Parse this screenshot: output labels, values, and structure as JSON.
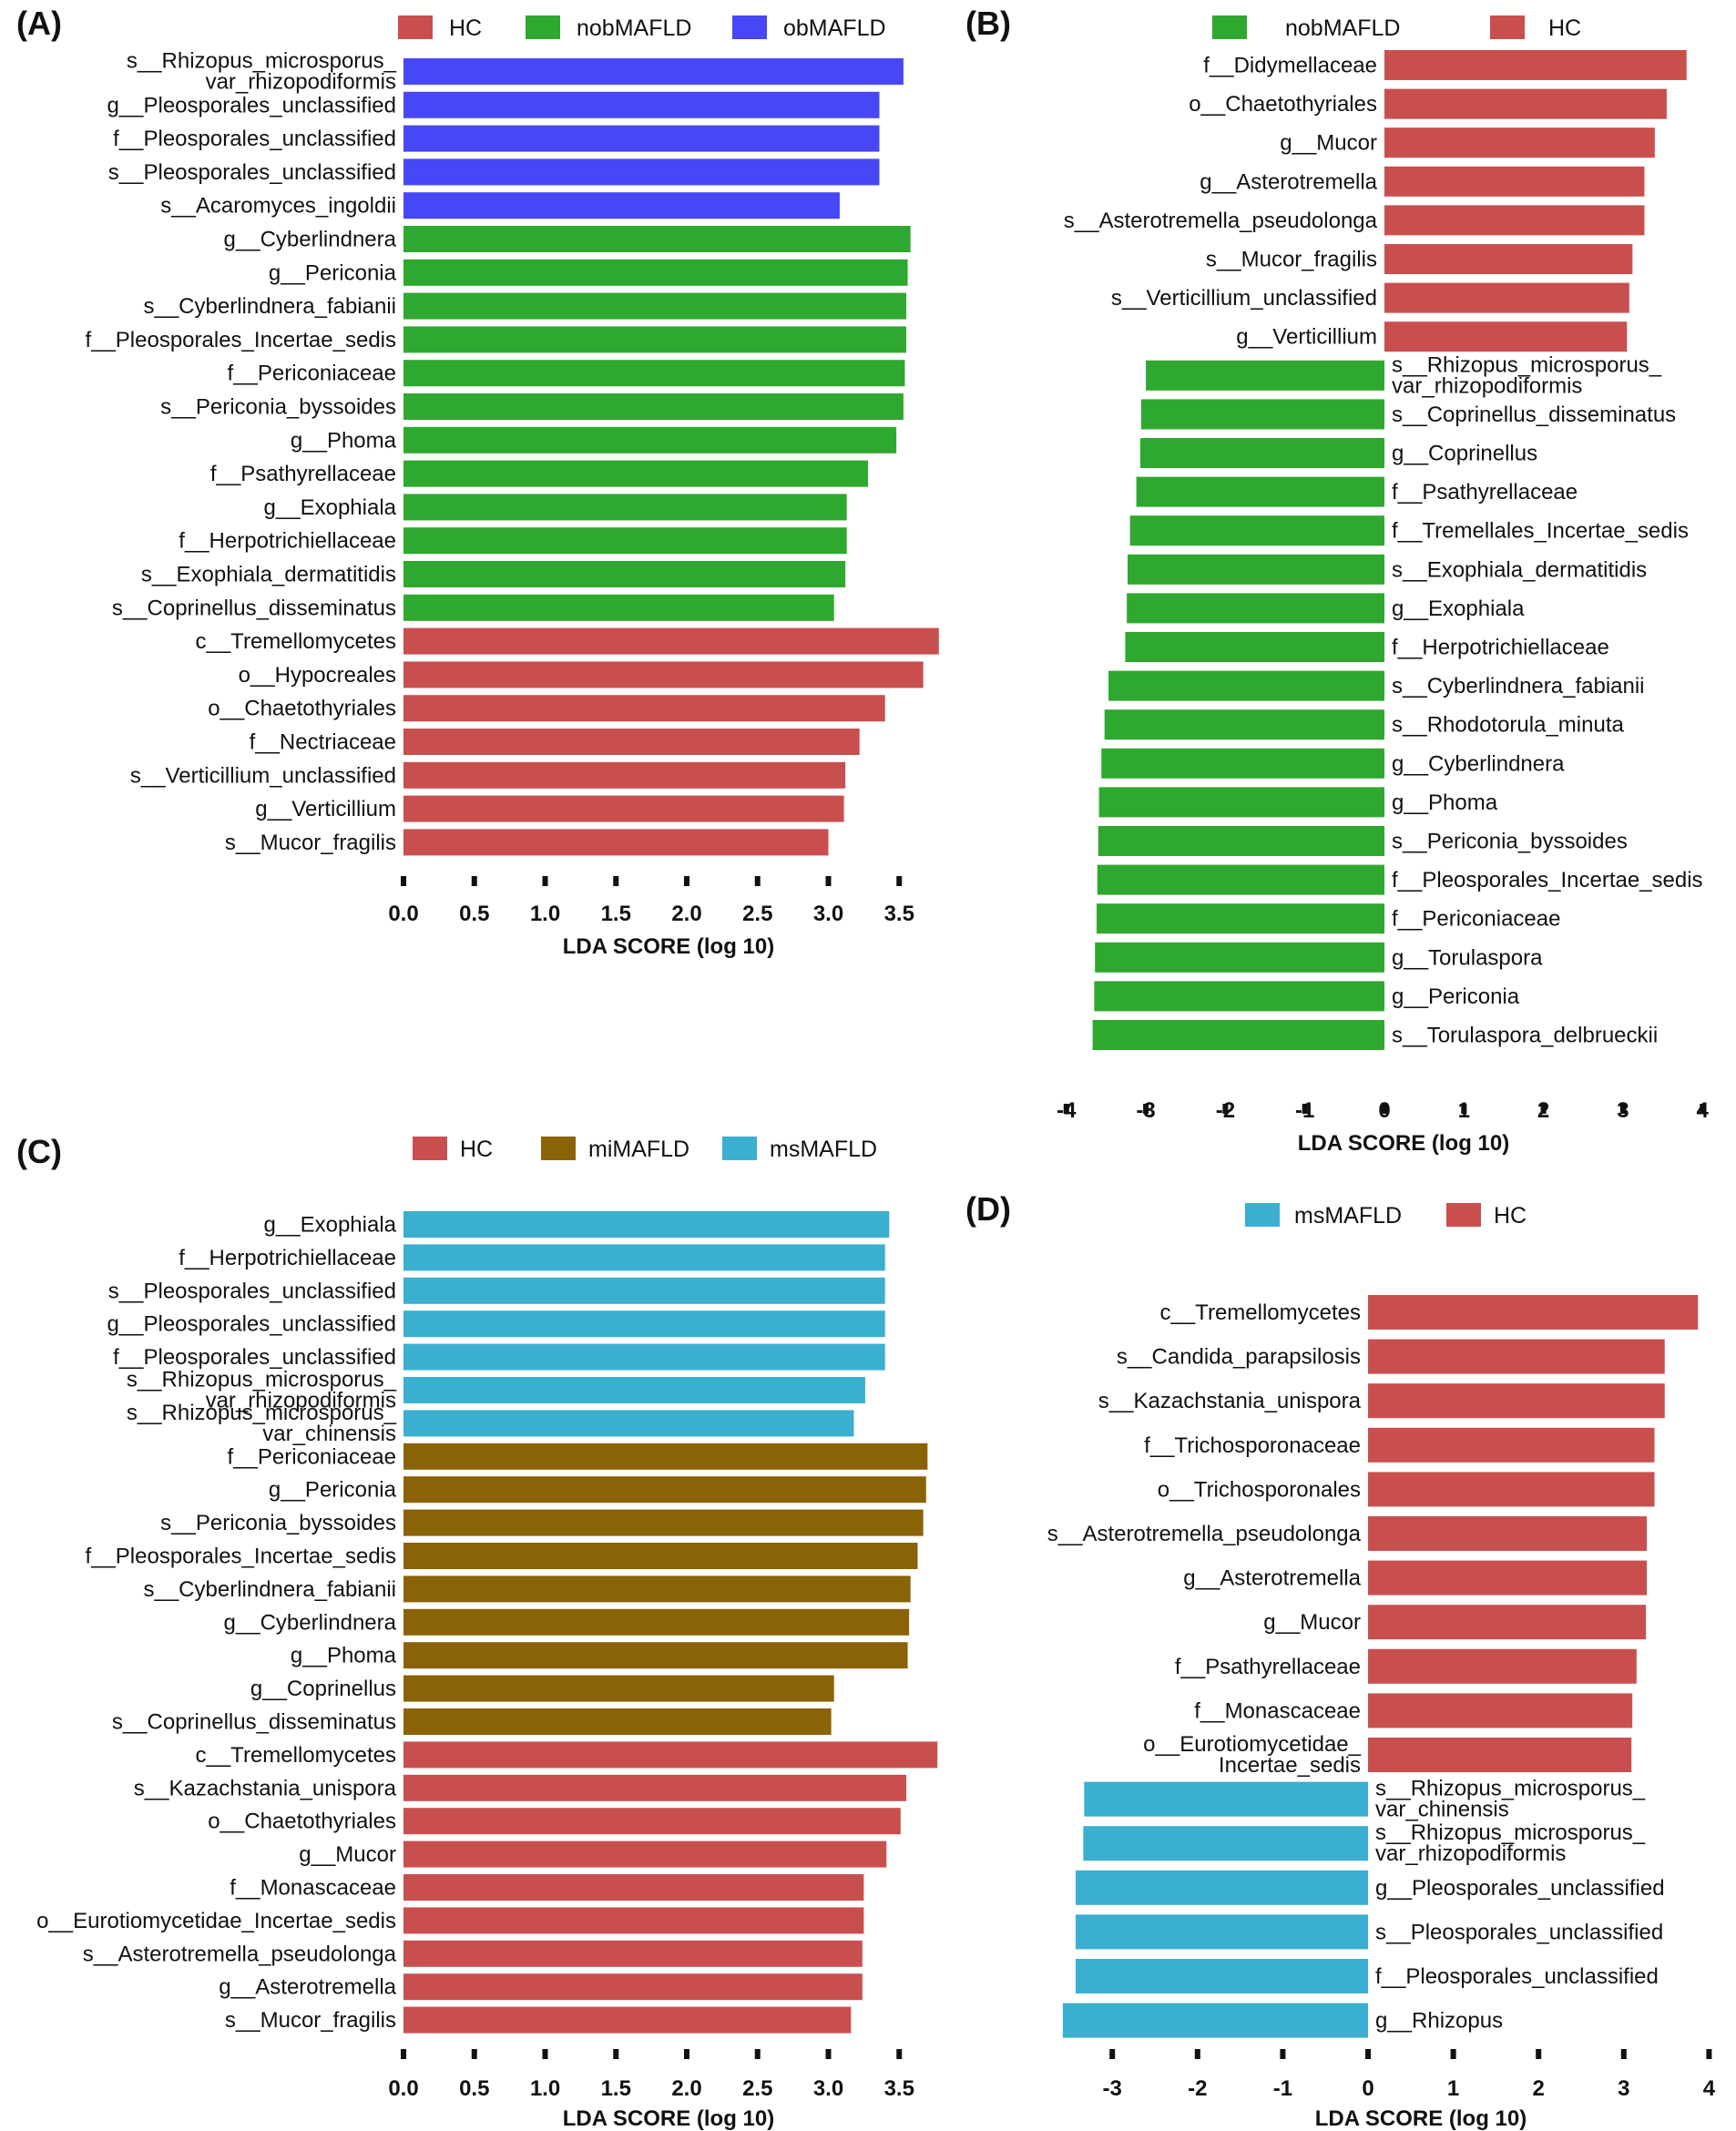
{
  "colors": {
    "HC": "#C94F4F",
    "nobMAFLD": "#2FA82F",
    "obMAFLD": "#4747F5",
    "miMAFLD": "#8A6306",
    "msMAFLD": "#3BAFCF"
  },
  "chart_data": [
    {
      "panel": "(A)",
      "type": "bar",
      "orientation": "horizontal",
      "xlabel": "LDA SCORE (log 10)",
      "xticks": [
        "0.0",
        "0.5",
        "1.0",
        "1.5",
        "2.0",
        "2.5",
        "3.0",
        "3.5"
      ],
      "xlim": [
        0,
        3.8
      ],
      "legend": [
        {
          "name": "HC",
          "color": "#C94F4F"
        },
        {
          "name": "nobMAFLD",
          "color": "#2FA82F"
        },
        {
          "name": "obMAFLD",
          "color": "#4747F5"
        }
      ],
      "bars": [
        {
          "label": [
            "s__Rhizopus_microsporus_",
            "var_rhizopodiformis"
          ],
          "value": 3.53,
          "group": "obMAFLD"
        },
        {
          "label": [
            "g__Pleosporales_unclassified"
          ],
          "value": 3.36,
          "group": "obMAFLD"
        },
        {
          "label": [
            "f__Pleosporales_unclassified"
          ],
          "value": 3.36,
          "group": "obMAFLD"
        },
        {
          "label": [
            "s__Pleosporales_unclassified"
          ],
          "value": 3.36,
          "group": "obMAFLD"
        },
        {
          "label": [
            "s__Acaromyces_ingoldii"
          ],
          "value": 3.08,
          "group": "obMAFLD"
        },
        {
          "label": [
            "g__Cyberlindnera"
          ],
          "value": 3.58,
          "group": "nobMAFLD"
        },
        {
          "label": [
            "g__Periconia"
          ],
          "value": 3.56,
          "group": "nobMAFLD"
        },
        {
          "label": [
            "s__Cyberlindnera_fabianii"
          ],
          "value": 3.55,
          "group": "nobMAFLD"
        },
        {
          "label": [
            "f__Pleosporales_Incertae_sedis"
          ],
          "value": 3.55,
          "group": "nobMAFLD"
        },
        {
          "label": [
            "f__Periconiaceae"
          ],
          "value": 3.54,
          "group": "nobMAFLD"
        },
        {
          "label": [
            "s__Periconia_byssoides"
          ],
          "value": 3.53,
          "group": "nobMAFLD"
        },
        {
          "label": [
            "g__Phoma"
          ],
          "value": 3.48,
          "group": "nobMAFLD"
        },
        {
          "label": [
            "f__Psathyrellaceae"
          ],
          "value": 3.28,
          "group": "nobMAFLD"
        },
        {
          "label": [
            "g__Exophiala"
          ],
          "value": 3.13,
          "group": "nobMAFLD"
        },
        {
          "label": [
            "f__Herpotrichiellaceae"
          ],
          "value": 3.13,
          "group": "nobMAFLD"
        },
        {
          "label": [
            "s__Exophiala_dermatitidis"
          ],
          "value": 3.12,
          "group": "nobMAFLD"
        },
        {
          "label": [
            "s__Coprinellus_disseminatus"
          ],
          "value": 3.04,
          "group": "nobMAFLD"
        },
        {
          "label": [
            "c__Tremellomycetes"
          ],
          "value": 3.78,
          "group": "HC"
        },
        {
          "label": [
            "o__Hypocreales"
          ],
          "value": 3.67,
          "group": "HC"
        },
        {
          "label": [
            "o__Chaetothyriales"
          ],
          "value": 3.4,
          "group": "HC"
        },
        {
          "label": [
            "f__Nectriaceae"
          ],
          "value": 3.22,
          "group": "HC"
        },
        {
          "label": [
            "s__Verticillium_unclassified"
          ],
          "value": 3.12,
          "group": "HC"
        },
        {
          "label": [
            "g__Verticillium"
          ],
          "value": 3.11,
          "group": "HC"
        },
        {
          "label": [
            "s__Mucor_fragilis"
          ],
          "value": 3.0,
          "group": "HC"
        }
      ]
    },
    {
      "panel": "(B)",
      "type": "bar",
      "orientation": "horizontal",
      "xlabel": "LDA SCORE (log 10)",
      "xticks": [
        "-4",
        "-3",
        "-2",
        "-1",
        "0",
        "1",
        "2",
        "3",
        "4"
      ],
      "xlim": [
        -4,
        4
      ],
      "legend": [
        {
          "name": "nobMAFLD",
          "color": "#2FA82F"
        },
        {
          "name": "HC",
          "color": "#C94F4F"
        }
      ],
      "bars": [
        {
          "label": [
            "f__Didymellaceae"
          ],
          "value": 3.8,
          "group": "HC"
        },
        {
          "label": [
            "o__Chaetothyriales"
          ],
          "value": 3.55,
          "group": "HC"
        },
        {
          "label": [
            "g__Mucor"
          ],
          "value": 3.4,
          "group": "HC"
        },
        {
          "label": [
            "g__Asterotremella"
          ],
          "value": 3.27,
          "group": "HC"
        },
        {
          "label": [
            "s__Asterotremella_pseudolonga"
          ],
          "value": 3.27,
          "group": "HC"
        },
        {
          "label": [
            "s__Mucor_fragilis"
          ],
          "value": 3.12,
          "group": "HC"
        },
        {
          "label": [
            "s__Verticillium_unclassified"
          ],
          "value": 3.08,
          "group": "HC"
        },
        {
          "label": [
            "g__Verticillium"
          ],
          "value": 3.05,
          "group": "HC"
        },
        {
          "label": [
            "s__Rhizopus_microsporus_",
            "var_rhizopodiformis"
          ],
          "value": -3.0,
          "group": "nobMAFLD"
        },
        {
          "label": [
            "s__Coprinellus_disseminatus"
          ],
          "value": -3.06,
          "group": "nobMAFLD"
        },
        {
          "label": [
            "g__Coprinellus"
          ],
          "value": -3.07,
          "group": "nobMAFLD"
        },
        {
          "label": [
            "f__Psathyrellaceae"
          ],
          "value": -3.12,
          "group": "nobMAFLD"
        },
        {
          "label": [
            "f__Tremellales_Incertae_sedis"
          ],
          "value": -3.2,
          "group": "nobMAFLD"
        },
        {
          "label": [
            "s__Exophiala_dermatitidis"
          ],
          "value": -3.23,
          "group": "nobMAFLD"
        },
        {
          "label": [
            "g__Exophiala"
          ],
          "value": -3.24,
          "group": "nobMAFLD"
        },
        {
          "label": [
            "f__Herpotrichiellaceae"
          ],
          "value": -3.26,
          "group": "nobMAFLD"
        },
        {
          "label": [
            "s__Cyberlindnera_fabianii"
          ],
          "value": -3.47,
          "group": "nobMAFLD"
        },
        {
          "label": [
            "s__Rhodotorula_minuta"
          ],
          "value": -3.52,
          "group": "nobMAFLD"
        },
        {
          "label": [
            "g__Cyberlindnera"
          ],
          "value": -3.56,
          "group": "nobMAFLD"
        },
        {
          "label": [
            "g__Phoma"
          ],
          "value": -3.59,
          "group": "nobMAFLD"
        },
        {
          "label": [
            "s__Periconia_byssoides"
          ],
          "value": -3.6,
          "group": "nobMAFLD"
        },
        {
          "label": [
            "f__Pleosporales_Incertae_sedis"
          ],
          "value": -3.61,
          "group": "nobMAFLD"
        },
        {
          "label": [
            "f__Periconiaceae"
          ],
          "value": -3.62,
          "group": "nobMAFLD"
        },
        {
          "label": [
            "g__Torulaspora"
          ],
          "value": -3.64,
          "group": "nobMAFLD"
        },
        {
          "label": [
            "g__Periconia"
          ],
          "value": -3.65,
          "group": "nobMAFLD"
        },
        {
          "label": [
            "s__Torulaspora_delbrueckii"
          ],
          "value": -3.67,
          "group": "nobMAFLD"
        }
      ]
    },
    {
      "panel": "(C)",
      "type": "bar",
      "orientation": "horizontal",
      "xlabel": "LDA SCORE (log 10)",
      "xticks": [
        "0.0",
        "0.5",
        "1.0",
        "1.5",
        "2.0",
        "2.5",
        "3.0",
        "3.5"
      ],
      "xlim": [
        0,
        3.8
      ],
      "legend": [
        {
          "name": "HC",
          "color": "#C94F4F"
        },
        {
          "name": "miMAFLD",
          "color": "#8A6306"
        },
        {
          "name": "msMAFLD",
          "color": "#3BAFCF"
        }
      ],
      "bars": [
        {
          "label": [
            "g__Exophiala"
          ],
          "value": 3.43,
          "group": "msMAFLD"
        },
        {
          "label": [
            "f__Herpotrichiellaceae"
          ],
          "value": 3.4,
          "group": "msMAFLD"
        },
        {
          "label": [
            "s__Pleosporales_unclassified"
          ],
          "value": 3.4,
          "group": "msMAFLD"
        },
        {
          "label": [
            "g__Pleosporales_unclassified"
          ],
          "value": 3.4,
          "group": "msMAFLD"
        },
        {
          "label": [
            "f__Pleosporales_unclassified"
          ],
          "value": 3.4,
          "group": "msMAFLD"
        },
        {
          "label": [
            "s__Rhizopus_microsporus_",
            "var_rhizopodiformis"
          ],
          "value": 3.26,
          "group": "msMAFLD"
        },
        {
          "label": [
            "s__Rhizopus_microsporus_",
            "var_chinensis"
          ],
          "value": 3.18,
          "group": "msMAFLD"
        },
        {
          "label": [
            "f__Periconiaceae"
          ],
          "value": 3.7,
          "group": "miMAFLD"
        },
        {
          "label": [
            "g__Periconia"
          ],
          "value": 3.69,
          "group": "miMAFLD"
        },
        {
          "label": [
            "s__Periconia_byssoides"
          ],
          "value": 3.67,
          "group": "miMAFLD"
        },
        {
          "label": [
            "f__Pleosporales_Incertae_sedis"
          ],
          "value": 3.63,
          "group": "miMAFLD"
        },
        {
          "label": [
            "s__Cyberlindnera_fabianii"
          ],
          "value": 3.58,
          "group": "miMAFLD"
        },
        {
          "label": [
            "g__Cyberlindnera"
          ],
          "value": 3.57,
          "group": "miMAFLD"
        },
        {
          "label": [
            "g__Phoma"
          ],
          "value": 3.56,
          "group": "miMAFLD"
        },
        {
          "label": [
            "g__Coprinellus"
          ],
          "value": 3.04,
          "group": "miMAFLD"
        },
        {
          "label": [
            "s__Coprinellus_disseminatus"
          ],
          "value": 3.02,
          "group": "miMAFLD"
        },
        {
          "label": [
            "c__Tremellomycetes"
          ],
          "value": 3.77,
          "group": "HC"
        },
        {
          "label": [
            "s__Kazachstania_unispora"
          ],
          "value": 3.55,
          "group": "HC"
        },
        {
          "label": [
            "o__Chaetothyriales"
          ],
          "value": 3.51,
          "group": "HC"
        },
        {
          "label": [
            "g__Mucor"
          ],
          "value": 3.41,
          "group": "HC"
        },
        {
          "label": [
            "f__Monascaceae"
          ],
          "value": 3.25,
          "group": "HC"
        },
        {
          "label": [
            "o__Eurotiomycetidae_Incertae_sedis"
          ],
          "value": 3.25,
          "group": "HC"
        },
        {
          "label": [
            "s__Asterotremella_pseudolonga"
          ],
          "value": 3.24,
          "group": "HC"
        },
        {
          "label": [
            "g__Asterotremella"
          ],
          "value": 3.24,
          "group": "HC"
        },
        {
          "label": [
            "s__Mucor_fragilis"
          ],
          "value": 3.16,
          "group": "HC"
        }
      ]
    },
    {
      "panel": "(D)",
      "type": "bar",
      "orientation": "horizontal",
      "xlabel": "LDA SCORE (log 10)",
      "xticks": [
        "-3",
        "-2",
        "-1",
        "0",
        "1",
        "2",
        "3",
        "4"
      ],
      "xlim": [
        -3.6,
        4
      ],
      "legend": [
        {
          "name": "msMAFLD",
          "color": "#3BAFCF"
        },
        {
          "name": "HC",
          "color": "#C94F4F"
        }
      ],
      "bars": [
        {
          "label": [
            "c__Tremellomycetes"
          ],
          "value": 3.87,
          "group": "HC"
        },
        {
          "label": [
            "s__Candida_parapsilosis"
          ],
          "value": 3.48,
          "group": "HC"
        },
        {
          "label": [
            "s__Kazachstania_unispora"
          ],
          "value": 3.48,
          "group": "HC"
        },
        {
          "label": [
            "f__Trichosporonaceae"
          ],
          "value": 3.36,
          "group": "HC"
        },
        {
          "label": [
            "o__Trichosporonales"
          ],
          "value": 3.36,
          "group": "HC"
        },
        {
          "label": [
            "s__Asterotremella_pseudolonga"
          ],
          "value": 3.27,
          "group": "HC"
        },
        {
          "label": [
            "g__Asterotremella"
          ],
          "value": 3.27,
          "group": "HC"
        },
        {
          "label": [
            "g__Mucor"
          ],
          "value": 3.26,
          "group": "HC"
        },
        {
          "label": [
            "f__Psathyrellaceae"
          ],
          "value": 3.15,
          "group": "HC"
        },
        {
          "label": [
            "f__Monascaceae"
          ],
          "value": 3.1,
          "group": "HC"
        },
        {
          "label": [
            "o__Eurotiomycetidae_",
            "Incertae_sedis"
          ],
          "value": 3.09,
          "group": "HC"
        },
        {
          "label": [
            "s__Rhizopus_microsporus_",
            "var_chinensis"
          ],
          "value": -3.33,
          "group": "msMAFLD"
        },
        {
          "label": [
            "s__Rhizopus_microsporus_",
            "var_rhizopodiformis"
          ],
          "value": -3.34,
          "group": "msMAFLD"
        },
        {
          "label": [
            "g__Pleosporales_unclassified"
          ],
          "value": -3.43,
          "group": "msMAFLD"
        },
        {
          "label": [
            "s__Pleosporales_unclassified"
          ],
          "value": -3.43,
          "group": "msMAFLD"
        },
        {
          "label": [
            "f__Pleosporales_unclassified"
          ],
          "value": -3.43,
          "group": "msMAFLD"
        },
        {
          "label": [
            "g__Rhizopus"
          ],
          "value": -3.58,
          "group": "msMAFLD"
        }
      ]
    }
  ]
}
